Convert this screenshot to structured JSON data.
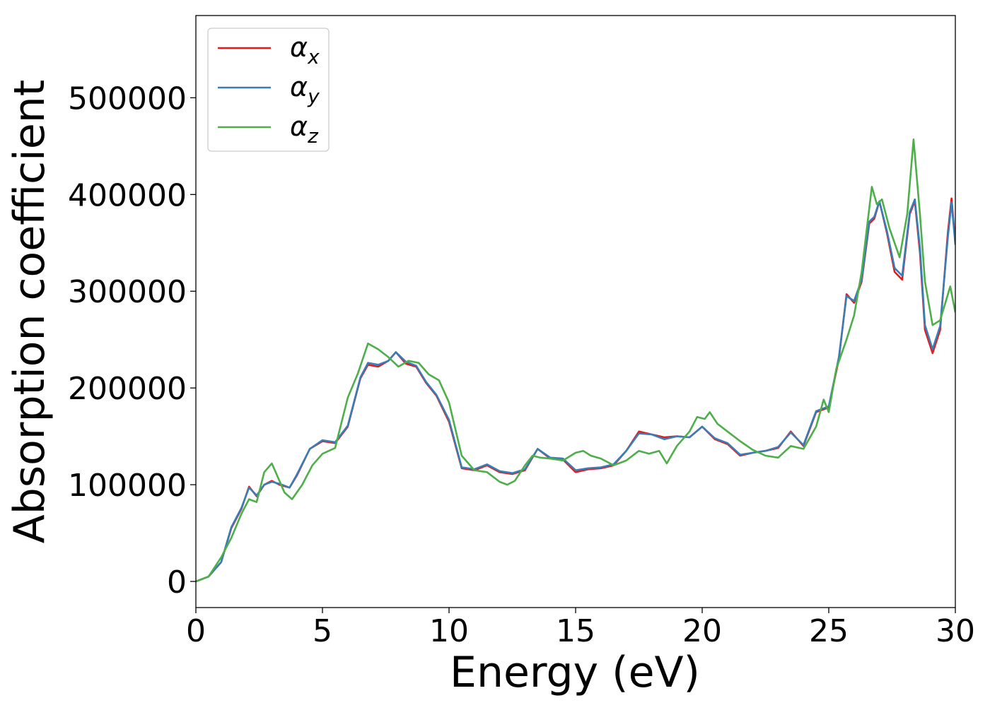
{
  "chart_data": {
    "type": "line",
    "xlabel": "Energy (eV)",
    "ylabel": "Absorption coefficient",
    "xlim": [
      0,
      30
    ],
    "ylim": [
      -27000,
      585000
    ],
    "x_ticks": [
      0,
      5,
      10,
      15,
      20,
      25,
      30
    ],
    "y_ticks": [
      0,
      100000,
      200000,
      300000,
      400000,
      500000
    ],
    "grid": false,
    "legend_position": "top-left",
    "colors": {
      "x": "#e41a1c",
      "y": "#377eb8",
      "z": "#4daf4a"
    },
    "legend": [
      {
        "key": "x",
        "base": "α",
        "sub": "x"
      },
      {
        "key": "y",
        "base": "α",
        "sub": "y"
      },
      {
        "key": "z",
        "base": "α",
        "sub": "z"
      }
    ],
    "series": [
      {
        "key": "x",
        "x": [
          0,
          0.5,
          1.0,
          1.4,
          1.8,
          2.1,
          2.4,
          2.7,
          3.0,
          3.3,
          3.7,
          4.0,
          4.5,
          5.0,
          5.5,
          6.0,
          6.5,
          6.8,
          7.2,
          7.6,
          7.9,
          8.3,
          8.7,
          9.1,
          9.5,
          10.0,
          10.5,
          11.0,
          11.5,
          12.0,
          12.5,
          13.0,
          13.5,
          14.0,
          14.5,
          15.0,
          15.5,
          16.0,
          16.5,
          17.0,
          17.5,
          18.0,
          18.5,
          19.0,
          19.5,
          20.0,
          20.5,
          21.0,
          21.5,
          22.0,
          22.5,
          23.0,
          23.5,
          24.0,
          24.5,
          25.0,
          25.4,
          25.7,
          26.0,
          26.3,
          26.6,
          26.8,
          27.0,
          27.3,
          27.6,
          27.9,
          28.2,
          28.4,
          28.6,
          28.8,
          29.1,
          29.4,
          29.7,
          29.85,
          30.0
        ],
        "values": [
          0,
          5000,
          20000,
          55000,
          75000,
          98000,
          88000,
          100000,
          104000,
          100000,
          97000,
          110000,
          137000,
          145000,
          143000,
          160000,
          210000,
          224000,
          222000,
          228000,
          237000,
          225000,
          222000,
          205000,
          192000,
          165000,
          117000,
          115000,
          120000,
          113000,
          111000,
          115000,
          137000,
          127000,
          126000,
          113000,
          116000,
          117000,
          120000,
          135000,
          155000,
          152000,
          149000,
          150000,
          149000,
          160000,
          147000,
          142000,
          130000,
          133000,
          135000,
          138000,
          155000,
          140000,
          175000,
          180000,
          230000,
          297000,
          288000,
          310000,
          370000,
          375000,
          393000,
          360000,
          320000,
          312000,
          380000,
          393000,
          340000,
          260000,
          236000,
          260000,
          360000,
          396000,
          350000
        ]
      },
      {
        "key": "y",
        "x": [
          0,
          0.5,
          1.0,
          1.4,
          1.8,
          2.1,
          2.4,
          2.7,
          3.0,
          3.3,
          3.7,
          4.0,
          4.5,
          5.0,
          5.5,
          6.0,
          6.5,
          6.8,
          7.2,
          7.6,
          7.9,
          8.3,
          8.7,
          9.1,
          9.5,
          10.0,
          10.5,
          11.0,
          11.5,
          12.0,
          12.5,
          13.0,
          13.5,
          14.0,
          14.5,
          15.0,
          15.5,
          16.0,
          16.5,
          17.0,
          17.5,
          18.0,
          18.5,
          19.0,
          19.5,
          20.0,
          20.5,
          21.0,
          21.5,
          22.0,
          22.5,
          23.0,
          23.5,
          24.0,
          24.5,
          25.0,
          25.4,
          25.7,
          26.0,
          26.3,
          26.6,
          26.8,
          27.0,
          27.3,
          27.6,
          27.9,
          28.2,
          28.4,
          28.6,
          28.8,
          29.1,
          29.4,
          29.7,
          29.85,
          30.0
        ],
        "values": [
          0,
          5000,
          20000,
          56000,
          76000,
          97000,
          89000,
          100000,
          103000,
          101000,
          97000,
          111000,
          137000,
          146000,
          144000,
          161000,
          211000,
          226000,
          224000,
          228000,
          237000,
          227000,
          223000,
          206000,
          193000,
          167000,
          118000,
          116000,
          121000,
          114000,
          112000,
          116000,
          137000,
          128000,
          127000,
          115000,
          117000,
          118000,
          121000,
          135000,
          153000,
          152000,
          147000,
          150000,
          149000,
          160000,
          148000,
          143000,
          131000,
          133000,
          135000,
          139000,
          154000,
          141000,
          176000,
          181000,
          232000,
          295000,
          290000,
          312000,
          372000,
          377000,
          393000,
          362000,
          324000,
          316000,
          382000,
          395000,
          345000,
          265000,
          240000,
          264000,
          355000,
          392000,
          348000
        ]
      },
      {
        "key": "z",
        "x": [
          0,
          0.5,
          1.0,
          1.4,
          1.8,
          2.1,
          2.4,
          2.7,
          3.0,
          3.2,
          3.5,
          3.8,
          4.2,
          4.6,
          5.0,
          5.5,
          6.0,
          6.4,
          6.8,
          7.2,
          7.6,
          8.0,
          8.4,
          8.8,
          9.2,
          9.6,
          10.0,
          10.5,
          11.0,
          11.5,
          12.0,
          12.3,
          12.6,
          13.0,
          13.3,
          13.6,
          14.0,
          14.5,
          15.0,
          15.3,
          15.6,
          16.0,
          16.5,
          17.0,
          17.5,
          17.9,
          18.3,
          18.6,
          19.0,
          19.5,
          19.8,
          20.1,
          20.3,
          20.6,
          21.0,
          21.5,
          22.0,
          22.5,
          23.0,
          23.5,
          24.0,
          24.5,
          24.8,
          25.0,
          25.3,
          25.7,
          26.0,
          26.3,
          26.7,
          26.9,
          27.1,
          27.4,
          27.8,
          28.1,
          28.35,
          28.6,
          28.8,
          29.1,
          29.4,
          29.8,
          30.0
        ],
        "values": [
          0,
          5000,
          25000,
          45000,
          70000,
          85000,
          82000,
          113000,
          122000,
          110000,
          92000,
          85000,
          100000,
          120000,
          132000,
          138000,
          190000,
          215000,
          246000,
          240000,
          232000,
          222000,
          228000,
          226000,
          214000,
          208000,
          185000,
          130000,
          115000,
          113000,
          103000,
          100000,
          104000,
          120000,
          130000,
          128000,
          127000,
          125000,
          133000,
          135000,
          130000,
          127000,
          120000,
          125000,
          135000,
          132000,
          135000,
          122000,
          140000,
          155000,
          170000,
          168000,
          175000,
          163000,
          155000,
          145000,
          136000,
          130000,
          128000,
          140000,
          137000,
          160000,
          188000,
          175000,
          220000,
          250000,
          275000,
          320000,
          408000,
          390000,
          395000,
          365000,
          335000,
          380000,
          457000,
          380000,
          310000,
          265000,
          270000,
          305000,
          278000
        ]
      }
    ]
  }
}
